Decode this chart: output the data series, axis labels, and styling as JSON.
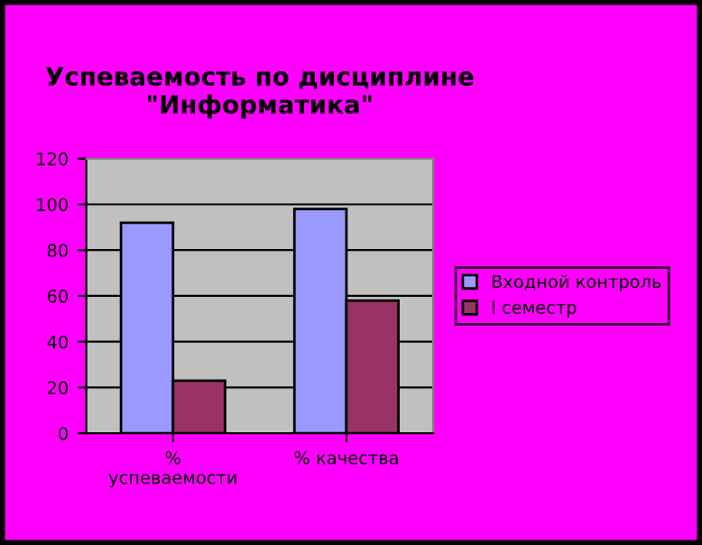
{
  "chart_data": {
    "type": "bar",
    "title": "Успеваемость по дисциплине\n\"Информатика\"",
    "categories": [
      "%\nуспеваемости",
      "% качества"
    ],
    "series": [
      {
        "name": "Входной контроль",
        "color": "#9999ff",
        "values": [
          92,
          98
        ]
      },
      {
        "name": "I семестр",
        "color": "#993366",
        "values": [
          23,
          58
        ]
      }
    ],
    "ylim": [
      0,
      120
    ],
    "yticks": [
      0,
      20,
      40,
      60,
      80,
      100,
      120
    ],
    "grid": "y",
    "legend": "right"
  }
}
